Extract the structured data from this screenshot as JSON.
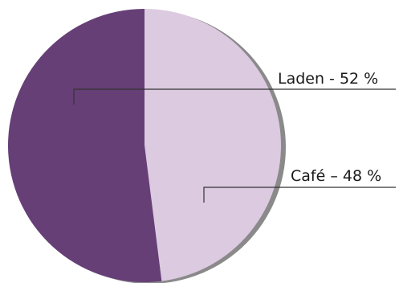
{
  "chart_data": {
    "type": "pie",
    "title": "",
    "slices": [
      {
        "label": "Laden  - 52 %",
        "name": "Laden",
        "value": 52,
        "color": "#663f77"
      },
      {
        "label": "Café – 48 %",
        "name": "Café",
        "value": 48,
        "color": "#dccae0"
      }
    ],
    "start_angle_deg": 0,
    "direction": "counterclockwise",
    "legend": "none",
    "shadow_color": "#8a8a8a",
    "leader_line_color": "#333333"
  }
}
